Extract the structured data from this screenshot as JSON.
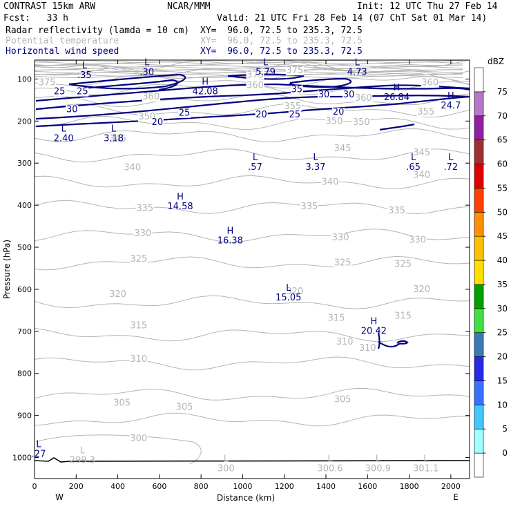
{
  "header": {
    "model": "CONTRAST 15km ARW",
    "org": "NCAR/MMM",
    "init": "Init: 12 UTC Thu 27 Feb 14",
    "fcst": "Fcst:   33 h",
    "valid": "Valid: 21 UTC Fri 28 Feb 14 (07 ChT Sat 01 Mar 14)",
    "fields": [
      {
        "name": "Radar reflectivity (lamda = 10 cm)",
        "xy": "XY=  96.0, 72.5 to 235.3, 72.5",
        "color": "#000000"
      },
      {
        "name": "Potential temperature",
        "xy": "XY=  96.0, 72.5 to 235.3, 72.5",
        "color": "#b4b4b4"
      },
      {
        "name": "Horizontal wind speed",
        "xy": "XY=  96.0, 72.5 to 235.3, 72.5",
        "color": "#000080"
      }
    ]
  },
  "chart_data": {
    "type": "cross-section contour",
    "xlabel": "Distance (km)",
    "ylabel": "Pressure (hPa)",
    "xlim": [
      0,
      2090
    ],
    "ylim": [
      1050,
      55
    ],
    "x_ticks": [
      0,
      200,
      400,
      600,
      800,
      1000,
      1200,
      1400,
      1600,
      1800,
      2000
    ],
    "y_ticks": [
      100,
      200,
      300,
      400,
      500,
      600,
      700,
      800,
      900,
      1000
    ],
    "x_end_labels": {
      "left": "W",
      "right": "E"
    },
    "colorbar": {
      "title": "dBZ",
      "levels": [
        0,
        5,
        10,
        15,
        20,
        25,
        30,
        35,
        40,
        45,
        50,
        55,
        60,
        65,
        70,
        75
      ],
      "colors": [
        "#ffffff",
        "#a0ffff",
        "#40c8ff",
        "#3870ff",
        "#2828e8",
        "#3c78b4",
        "#40e040",
        "#00a000",
        "#ffe000",
        "#ffc000",
        "#ff9000",
        "#ff4000",
        "#e00000",
        "#a03030",
        "#9020a0",
        "#b878c8",
        "#ffffff"
      ]
    },
    "theta_labels": [
      {
        "x": 60,
        "p": 108,
        "text": "375"
      },
      {
        "x": 1060,
        "p": 90,
        "text": "375"
      },
      {
        "x": 1250,
        "p": 80,
        "text": "375"
      },
      {
        "x": 1900,
        "p": 108,
        "text": "360"
      },
      {
        "x": 560,
        "p": 142,
        "text": "360"
      },
      {
        "x": 1060,
        "p": 115,
        "text": "360"
      },
      {
        "x": 1580,
        "p": 145,
        "text": "360"
      },
      {
        "x": 1240,
        "p": 165,
        "text": "355"
      },
      {
        "x": 1880,
        "p": 178,
        "text": "355"
      },
      {
        "x": 540,
        "p": 190,
        "text": "350"
      },
      {
        "x": 1440,
        "p": 200,
        "text": "350"
      },
      {
        "x": 1570,
        "p": 203,
        "text": "350"
      },
      {
        "x": 400,
        "p": 242,
        "text": "345"
      },
      {
        "x": 1480,
        "p": 265,
        "text": "345"
      },
      {
        "x": 1860,
        "p": 275,
        "text": "345"
      },
      {
        "x": 470,
        "p": 310,
        "text": "340"
      },
      {
        "x": 1420,
        "p": 345,
        "text": "340"
      },
      {
        "x": 1860,
        "p": 328,
        "text": "340"
      },
      {
        "x": 530,
        "p": 407,
        "text": "335"
      },
      {
        "x": 1320,
        "p": 403,
        "text": "335"
      },
      {
        "x": 1740,
        "p": 413,
        "text": "335"
      },
      {
        "x": 520,
        "p": 467,
        "text": "330"
      },
      {
        "x": 1470,
        "p": 477,
        "text": "330"
      },
      {
        "x": 1840,
        "p": 483,
        "text": "330"
      },
      {
        "x": 500,
        "p": 528,
        "text": "325"
      },
      {
        "x": 1480,
        "p": 537,
        "text": "325"
      },
      {
        "x": 1770,
        "p": 540,
        "text": "325"
      },
      {
        "x": 400,
        "p": 612,
        "text": "320"
      },
      {
        "x": 1250,
        "p": 605,
        "text": "320"
      },
      {
        "x": 1860,
        "p": 600,
        "text": "320"
      },
      {
        "x": 500,
        "p": 686,
        "text": "315"
      },
      {
        "x": 1450,
        "p": 668,
        "text": "315"
      },
      {
        "x": 1770,
        "p": 663,
        "text": "315"
      },
      {
        "x": 500,
        "p": 766,
        "text": "310"
      },
      {
        "x": 1490,
        "p": 725,
        "text": "310"
      },
      {
        "x": 1600,
        "p": 740,
        "text": "310"
      },
      {
        "x": 420,
        "p": 870,
        "text": "305"
      },
      {
        "x": 720,
        "p": 880,
        "text": "305"
      },
      {
        "x": 1480,
        "p": 862,
        "text": "305"
      },
      {
        "x": 500,
        "p": 955,
        "text": "300"
      }
    ],
    "wind_labels": [
      {
        "x": 120,
        "p": 130,
        "text": "25"
      },
      {
        "x": 230,
        "p": 130,
        "text": "25"
      },
      {
        "x": 180,
        "p": 172,
        "text": "30"
      },
      {
        "x": 720,
        "p": 181,
        "text": "25"
      },
      {
        "x": 590,
        "p": 203,
        "text": "20"
      },
      {
        "x": 1090,
        "p": 185,
        "text": "20"
      },
      {
        "x": 1250,
        "p": 185,
        "text": "25"
      },
      {
        "x": 1260,
        "p": 125,
        "text": "35"
      },
      {
        "x": 1390,
        "p": 137,
        "text": "30"
      },
      {
        "x": 1510,
        "p": 137,
        "text": "30"
      },
      {
        "x": 1460,
        "p": 178,
        "text": "20"
      }
    ],
    "extrema": [
      {
        "x": 240,
        "p": 75,
        "kind": "L",
        "value": ".35",
        "color": "#000080"
      },
      {
        "x": 540,
        "p": 67,
        "kind": "L",
        "value": ".30",
        "color": "#000080"
      },
      {
        "x": 820,
        "p": 113,
        "kind": "H",
        "value": "42.08",
        "color": "#000080"
      },
      {
        "x": 1110,
        "p": 67,
        "kind": "L",
        "value": "5.79",
        "color": "#000080"
      },
      {
        "x": 1550,
        "p": 67,
        "kind": "L",
        "value": "4.73",
        "color": "#000080"
      },
      {
        "x": 1740,
        "p": 127,
        "kind": "H",
        "value": "26.84",
        "color": "#000080"
      },
      {
        "x": 2000,
        "p": 147,
        "kind": "H",
        "value": "24.7",
        "color": "#000080"
      },
      {
        "x": 140,
        "p": 225,
        "kind": "L",
        "value": "2.40",
        "color": "#000080"
      },
      {
        "x": 380,
        "p": 225,
        "kind": "L",
        "value": "3.18",
        "color": "#000080"
      },
      {
        "x": 1060,
        "p": 293,
        "kind": "L",
        "value": ".57",
        "color": "#000080"
      },
      {
        "x": 1350,
        "p": 293,
        "kind": "L",
        "value": "3.37",
        "color": "#000080"
      },
      {
        "x": 1820,
        "p": 293,
        "kind": "L",
        "value": ".65",
        "color": "#000080"
      },
      {
        "x": 2000,
        "p": 293,
        "kind": "L",
        "value": ".72",
        "color": "#000080"
      },
      {
        "x": 700,
        "p": 387,
        "kind": "H",
        "value": "14.58",
        "color": "#000080"
      },
      {
        "x": 940,
        "p": 468,
        "kind": "H",
        "value": "16.38",
        "color": "#000080"
      },
      {
        "x": 1220,
        "p": 603,
        "kind": "L",
        "value": "15.05",
        "color": "#000080"
      },
      {
        "x": 1630,
        "p": 683,
        "kind": "H",
        "value": "20.42",
        "color": "#000080"
      },
      {
        "x": 20,
        "p": 975,
        "kind": "L",
        "value": ".27",
        "color": "#000080"
      },
      {
        "x": 230,
        "p": 990,
        "kind": "L",
        "value": "299.3",
        "color": "#b4b4b4"
      },
      {
        "x": 920,
        "p": 1010,
        "kind": "L",
        "value": "300",
        "color": "#b4b4b4"
      },
      {
        "x": 1420,
        "p": 1010,
        "kind": "L",
        "value": "300.6",
        "color": "#b4b4b4"
      },
      {
        "x": 1650,
        "p": 1010,
        "kind": "L",
        "value": "300.9",
        "color": "#b4b4b4"
      },
      {
        "x": 1880,
        "p": 1010,
        "kind": "L",
        "value": "301.1",
        "color": "#b4b4b4"
      }
    ]
  }
}
